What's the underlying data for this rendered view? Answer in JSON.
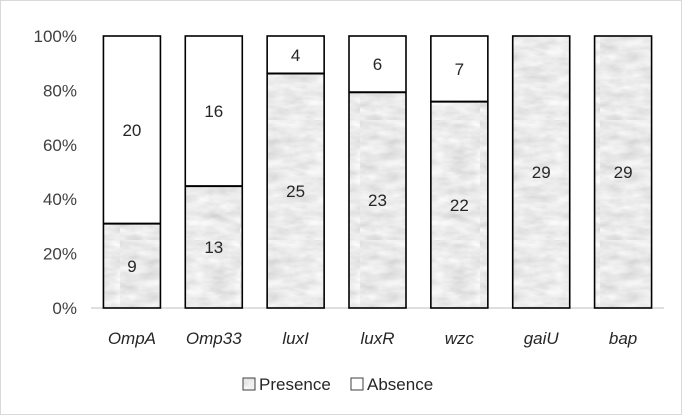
{
  "chart_data": {
    "type": "bar",
    "stacked": "percent",
    "categories": [
      "OmpA",
      "Omp33",
      "luxI",
      "luxR",
      "wzc",
      "gaiU",
      "bap"
    ],
    "series": [
      {
        "name": "Presence",
        "values": [
          9,
          13,
          25,
          23,
          22,
          29,
          29
        ],
        "fill": "textured-gray",
        "color": "#d4d4d4"
      },
      {
        "name": "Absence",
        "values": [
          20,
          16,
          4,
          6,
          7,
          0,
          0
        ],
        "fill": "white",
        "color": "#ffffff"
      }
    ],
    "yticks": [
      "0%",
      "20%",
      "40%",
      "60%",
      "80%",
      "100%"
    ],
    "ylim": [
      0,
      100
    ],
    "title": "",
    "xlabel": "",
    "ylabel": "",
    "grid": false,
    "legend": {
      "position": "bottom",
      "entries": [
        "Presence",
        "Absence"
      ]
    }
  }
}
